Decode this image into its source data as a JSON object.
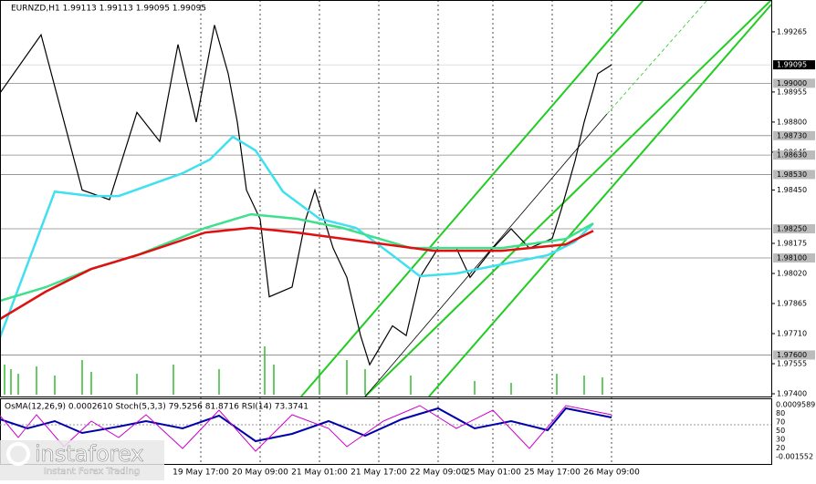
{
  "chart_data": {
    "type": "line",
    "title": "EURNZD,H1  1.99113 1.99113 1.99095 1.99095",
    "indicator_label": "OsMA(12,26,9) 0.0002610  Stoch(5,3,3) 79.5256 81.8716  RSI(14) 73.3741",
    "indicator_ticks": [
      "0.0009589",
      "80",
      "70",
      "50",
      "30",
      "20",
      "-0.001552"
    ],
    "logo": "instaforex",
    "logo_tagline": "Instant Forex Trading",
    "xlim": [
      0,
      169
    ],
    "ylim": [
      1.97386,
      1.99429
    ],
    "xticks": [
      {
        "value": 44,
        "label": "19 May 17:00"
      },
      {
        "value": 57,
        "label": "20 May 09:00"
      },
      {
        "value": 70,
        "label": "21 May 01:00"
      },
      {
        "value": 83,
        "label": "21 May 17:00"
      },
      {
        "value": 96,
        "label": "22 May 09:00"
      },
      {
        "value": 108,
        "label": "25 May 01:00"
      },
      {
        "value": 121,
        "label": "25 May 17:00"
      },
      {
        "value": 134,
        "label": "26 May 09:00"
      }
    ],
    "yticks": [
      1.99265,
      1.98955,
      {
        "value": 1.988,
        "label": "1.98800"
      },
      1.98645,
      {
        "value": 1.9845,
        "label": "1.98450"
      },
      1.98175,
      {
        "value": 1.9802,
        "label": "1.98020"
      },
      1.97865,
      {
        "value": 1.9771,
        "label": "1.97710"
      },
      1.97555,
      {
        "value": 1.974,
        "label": "1.97400"
      }
    ],
    "levels": [
      {
        "value": 1.99,
        "label": "1.99000"
      },
      {
        "value": 1.9873,
        "label": "1.98730"
      },
      {
        "value": 1.9863,
        "label": "1.98630"
      },
      {
        "value": 1.9853,
        "label": "1.98530"
      },
      {
        "value": 1.9825,
        "label": "1.98250"
      },
      {
        "value": 1.981,
        "label": "1.98100"
      },
      {
        "value": 1.976,
        "label": "1.97600"
      }
    ],
    "current_price": 1.99095,
    "series": [
      {
        "color": "#000000",
        "x": [
          0,
          9,
          18,
          24,
          30,
          35,
          39,
          43,
          47,
          50,
          52,
          54,
          57,
          59,
          64,
          67,
          69,
          73,
          76,
          79,
          81,
          86,
          89,
          92,
          96,
          100,
          103,
          108,
          112,
          116,
          121,
          123,
          126,
          128,
          131,
          134
        ],
        "values": [
          1.9895,
          1.9925,
          1.9845,
          1.984,
          1.9885,
          1.987,
          1.992,
          1.988,
          1.993,
          1.9905,
          1.988,
          1.9845,
          1.983,
          1.979,
          1.9795,
          1.983,
          1.9845,
          1.9815,
          1.98,
          1.977,
          1.9755,
          1.9775,
          1.977,
          1.98,
          1.9815,
          1.9815,
          1.98,
          1.9815,
          1.9825,
          1.9815,
          1.982,
          1.9835,
          1.986,
          1.988,
          1.9905,
          1.99095
        ]
      },
      {
        "color": "#40e0f0",
        "x": [
          0,
          12,
          20,
          26,
          40,
          46,
          51,
          56,
          62,
          70,
          78,
          86,
          92,
          100,
          110,
          120,
          126,
          130
        ],
        "values": [
          1.97691,
          1.98442,
          1.98419,
          1.98419,
          1.98536,
          1.98607,
          1.98724,
          1.98654,
          1.98442,
          1.98302,
          1.98255,
          1.98114,
          1.98006,
          1.9802,
          1.98067,
          1.98114,
          1.98184,
          1.98278
        ]
      },
      {
        "color": "#3ee08c",
        "x": [
          0,
          10,
          20,
          30,
          45,
          55,
          65,
          75,
          90,
          110,
          124,
          130
        ],
        "values": [
          1.97879,
          1.97949,
          1.98043,
          1.98114,
          1.98255,
          1.98325,
          1.98302,
          1.98255,
          1.98151,
          1.98151,
          1.98198,
          1.98278
        ]
      },
      {
        "color": "#e01010",
        "x": [
          0,
          10,
          20,
          30,
          45,
          55,
          65,
          80,
          95,
          110,
          124,
          130
        ],
        "values": [
          1.97785,
          1.97926,
          1.98043,
          1.98114,
          1.98231,
          1.98255,
          1.98231,
          1.98184,
          1.98137,
          1.98137,
          1.9817,
          1.9824
        ]
      }
    ]
  }
}
